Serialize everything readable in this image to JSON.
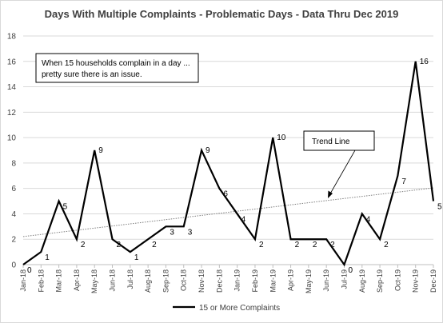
{
  "chart_data": {
    "type": "line",
    "title": "Days With Multiple Complaints - Problematic Days - Data Thru Dec 2019",
    "xlabel": "",
    "ylabel": "",
    "ylim": [
      0,
      18
    ],
    "yticks": [
      0,
      2,
      4,
      6,
      8,
      10,
      12,
      14,
      16,
      18
    ],
    "grid": "horizontal",
    "legend_position": "bottom",
    "categories": [
      "Jan-18",
      "Feb-18",
      "Mar-18",
      "Apr-18",
      "May-18",
      "Jun-18",
      "Jul-18",
      "Aug-18",
      "Sep-18",
      "Oct-18",
      "Nov-18",
      "Dec-18",
      "Jan-19",
      "Feb-19",
      "Mar-19",
      "Apr-19",
      "May-19",
      "Jun-19",
      "Jul-19",
      "Aug-19",
      "Sep-19",
      "Oct-19",
      "Nov-19",
      "Dec-19"
    ],
    "series": [
      {
        "name": "15 or More Complaints",
        "color": "#000000",
        "values": [
          0,
          1,
          5,
          2,
          9,
          2,
          1,
          2,
          3,
          3,
          9,
          6,
          4,
          2,
          10,
          2,
          2,
          2,
          0,
          4,
          2,
          7,
          16,
          5
        ]
      }
    ],
    "trendline": {
      "color": "#7f7f7f",
      "style": "dotted"
    },
    "annotations": [
      {
        "id": "note",
        "lines": [
          "When 15 households complain in a day ...",
          "pretty sure there is an issue."
        ]
      },
      {
        "id": "trend",
        "lines": [
          "Trend Line"
        ]
      }
    ]
  }
}
